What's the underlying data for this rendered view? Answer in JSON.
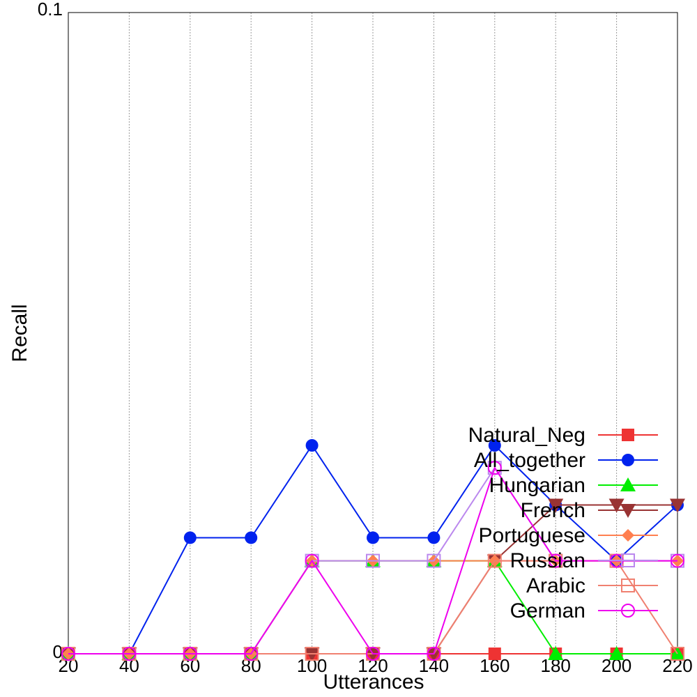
{
  "chart_data": {
    "type": "line",
    "xlabel": "Utterances",
    "ylabel": "Recall",
    "xlim": [
      20,
      220
    ],
    "ylim": [
      0,
      0.1
    ],
    "x": [
      20,
      40,
      60,
      80,
      100,
      120,
      140,
      160,
      180,
      200,
      220
    ],
    "x_tick_labels": [
      "20",
      "40",
      "60",
      "80",
      "100",
      "120",
      "140",
      "160",
      "180",
      "200",
      "220"
    ],
    "y_tick_labels": [
      "0",
      "0.1"
    ],
    "grid": "vertical dotted",
    "legend_position": "bottom-right",
    "series": [
      {
        "name": "Natural_Neg",
        "color": "#ee3333",
        "marker": "square-filled",
        "values": [
          0,
          0,
          0,
          0,
          0,
          0,
          0,
          0,
          0,
          0,
          0
        ]
      },
      {
        "name": "All_together",
        "color": "#0022ee",
        "marker": "circle-filled",
        "values": [
          0,
          0,
          0.0181,
          0.0181,
          0.0325,
          0.0181,
          0.0181,
          0.0325,
          0.0232,
          0.0145,
          0.0232
        ]
      },
      {
        "name": "Hungarian",
        "color": "#00ee00",
        "marker": "triangle-up-filled",
        "values": [
          0,
          0,
          0,
          0,
          0.0145,
          0.0145,
          0.0145,
          0.0145,
          0,
          0,
          0
        ]
      },
      {
        "name": "French",
        "color": "#993333",
        "marker": "triangle-down-filled",
        "values": [
          0,
          0,
          0,
          0,
          0,
          0,
          0,
          0.0145,
          0.0232,
          0.0232,
          0.0232
        ]
      },
      {
        "name": "Portuguese",
        "color": "#ff7f50",
        "marker": "diamond-filled",
        "values": [
          0,
          0,
          0,
          0,
          0.0145,
          0.0145,
          0.0145,
          0.0145,
          0.0145,
          0.0145,
          0.0145
        ]
      },
      {
        "name": "Russian",
        "color": "#bb88ee",
        "marker": "square-open",
        "values": [
          0,
          0,
          0,
          0,
          0.0145,
          0.0145,
          0.0145,
          0.029,
          0.0145,
          0.0145,
          0.0145
        ]
      },
      {
        "name": "Arabic",
        "color": "#f08070",
        "marker": "square-open",
        "values": [
          0,
          0,
          0,
          0,
          0,
          0,
          0,
          0.0145,
          0.0145,
          0.0145,
          0
        ]
      },
      {
        "name": "German",
        "color": "#ee00ee",
        "marker": "circle-open",
        "values": [
          0,
          0,
          0,
          0,
          0.0145,
          0,
          0,
          0.029,
          0.0145,
          0.0145,
          0.0145
        ]
      }
    ]
  }
}
